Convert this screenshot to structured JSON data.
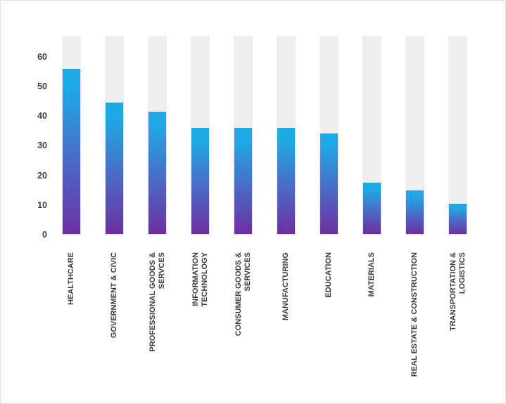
{
  "chart_data": {
    "type": "bar",
    "title": "",
    "xlabel": "",
    "ylabel": "",
    "categories": [
      "HEALTHCARE",
      "GOVERNMENT & CIVIC",
      "PROFESSIONAL GOODS & SERVCES",
      "INFORMATION TECHNOLOGY",
      "CONSUMER GOODS & SERVICES",
      "MANUFACTURING",
      "EDUCATION",
      "MATERIALS",
      "REAL ESTATE & CONSTRUCTION",
      "TRANSPORTATION & LOGISTICS"
    ],
    "category_lines": [
      [
        "HEALTHCARE"
      ],
      [
        "GOVERNMENT & CIVIC"
      ],
      [
        "PROFESSIONAL GOODS &",
        "SERVCES"
      ],
      [
        "INFORMATION",
        "TECHNOLOGY"
      ],
      [
        "CONSUMER GOODS &",
        "SERVICES"
      ],
      [
        "MANUFACTURING"
      ],
      [
        "EDUCATION"
      ],
      [
        "MATERIALS"
      ],
      [
        "REAL ESTATE & CONSTRUCTION"
      ],
      [
        "TRANSPORTATION &",
        "LOGISTICS"
      ]
    ],
    "values": [
      56,
      44.5,
      41.5,
      36,
      36,
      36,
      34,
      17.5,
      15,
      10.5
    ],
    "y_ticks": [
      0,
      10,
      20,
      30,
      40,
      50,
      60
    ],
    "ylim": [
      0,
      67
    ],
    "grid": false,
    "legend": null,
    "background_bars": true,
    "colors": {
      "bar_gradient_top": "#1FA9E4",
      "bar_gradient_mid": "#4A6BC8",
      "bar_gradient_bottom": "#6C30A0",
      "bar_background": "#F0EFEF",
      "bar_border": "#E9DFF2",
      "axis_text": "#3F3F3F",
      "page_border": "#E0E0E0"
    }
  }
}
